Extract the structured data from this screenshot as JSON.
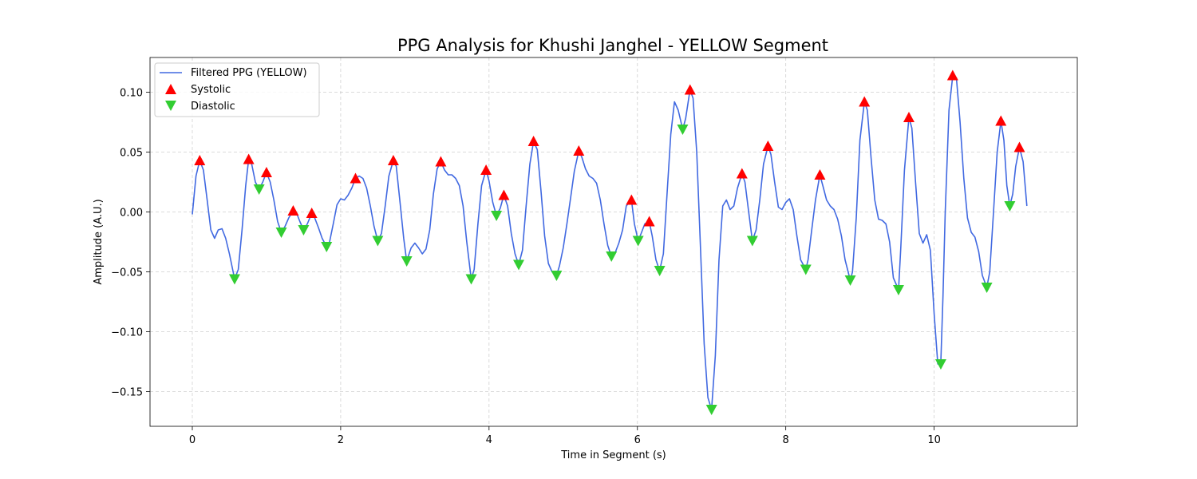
{
  "chart_data": {
    "type": "line",
    "title": "PPG Analysis for Khushi Janghel - YELLOW Segment",
    "xlabel": "Time in Segment (s)",
    "ylabel": "Amplitude (A.U.)",
    "xlim": [
      -0.57,
      11.93
    ],
    "ylim": [
      -0.179,
      0.129
    ],
    "xticks": [
      0,
      2,
      4,
      6,
      8,
      10
    ],
    "yticks": [
      -0.15,
      -0.1,
      -0.05,
      0.0,
      0.05,
      0.1
    ],
    "grid": true,
    "legend_position": "upper-left",
    "colors": {
      "line": "#4169e1",
      "systolic": "#ff0000",
      "diastolic": "#32cd32",
      "grid": "#b0b0b0"
    },
    "series": [
      {
        "name": "Filtered PPG (YELLOW)",
        "kind": "line",
        "points": [
          [
            0.0,
            -0.002
          ],
          [
            0.05,
            0.03
          ],
          [
            0.1,
            0.043
          ],
          [
            0.15,
            0.035
          ],
          [
            0.2,
            0.01
          ],
          [
            0.25,
            -0.015
          ],
          [
            0.3,
            -0.022
          ],
          [
            0.35,
            -0.015
          ],
          [
            0.4,
            -0.014
          ],
          [
            0.45,
            -0.022
          ],
          [
            0.5,
            -0.035
          ],
          [
            0.57,
            -0.056
          ],
          [
            0.62,
            -0.048
          ],
          [
            0.67,
            -0.015
          ],
          [
            0.72,
            0.022
          ],
          [
            0.76,
            0.044
          ],
          [
            0.8,
            0.04
          ],
          [
            0.85,
            0.025
          ],
          [
            0.9,
            0.019
          ],
          [
            0.95,
            0.025
          ],
          [
            1.0,
            0.033
          ],
          [
            1.05,
            0.025
          ],
          [
            1.1,
            0.01
          ],
          [
            1.15,
            -0.008
          ],
          [
            1.2,
            -0.017
          ],
          [
            1.25,
            -0.012
          ],
          [
            1.3,
            -0.005
          ],
          [
            1.36,
            0.001
          ],
          [
            1.4,
            0.0
          ],
          [
            1.45,
            -0.008
          ],
          [
            1.5,
            -0.015
          ],
          [
            1.55,
            -0.01
          ],
          [
            1.61,
            -0.001
          ],
          [
            1.65,
            -0.005
          ],
          [
            1.7,
            -0.013
          ],
          [
            1.75,
            -0.022
          ],
          [
            1.81,
            -0.029
          ],
          [
            1.85,
            -0.025
          ],
          [
            1.9,
            -0.01
          ],
          [
            1.95,
            0.006
          ],
          [
            2.0,
            0.011
          ],
          [
            2.05,
            0.01
          ],
          [
            2.1,
            0.014
          ],
          [
            2.15,
            0.02
          ],
          [
            2.2,
            0.028
          ],
          [
            2.25,
            0.03
          ],
          [
            2.3,
            0.028
          ],
          [
            2.35,
            0.02
          ],
          [
            2.4,
            0.005
          ],
          [
            2.45,
            -0.012
          ],
          [
            2.5,
            -0.024
          ],
          [
            2.55,
            -0.018
          ],
          [
            2.6,
            0.005
          ],
          [
            2.65,
            0.03
          ],
          [
            2.71,
            0.043
          ],
          [
            2.75,
            0.038
          ],
          [
            2.8,
            0.008
          ],
          [
            2.85,
            -0.022
          ],
          [
            2.89,
            -0.041
          ],
          [
            2.95,
            -0.03
          ],
          [
            3.0,
            -0.026
          ],
          [
            3.05,
            -0.03
          ],
          [
            3.1,
            -0.035
          ],
          [
            3.15,
            -0.031
          ],
          [
            3.2,
            -0.015
          ],
          [
            3.25,
            0.015
          ],
          [
            3.3,
            0.036
          ],
          [
            3.35,
            0.042
          ],
          [
            3.4,
            0.035
          ],
          [
            3.45,
            0.031
          ],
          [
            3.5,
            0.031
          ],
          [
            3.55,
            0.028
          ],
          [
            3.6,
            0.022
          ],
          [
            3.65,
            0.005
          ],
          [
            3.7,
            -0.025
          ],
          [
            3.76,
            -0.056
          ],
          [
            3.8,
            -0.048
          ],
          [
            3.85,
            -0.01
          ],
          [
            3.9,
            0.022
          ],
          [
            3.96,
            0.035
          ],
          [
            4.0,
            0.026
          ],
          [
            4.05,
            0.008
          ],
          [
            4.1,
            -0.003
          ],
          [
            4.15,
            0.003
          ],
          [
            4.2,
            0.014
          ],
          [
            4.25,
            0.005
          ],
          [
            4.3,
            -0.018
          ],
          [
            4.35,
            -0.035
          ],
          [
            4.4,
            -0.044
          ],
          [
            4.45,
            -0.032
          ],
          [
            4.5,
            0.005
          ],
          [
            4.55,
            0.04
          ],
          [
            4.6,
            0.059
          ],
          [
            4.65,
            0.052
          ],
          [
            4.7,
            0.018
          ],
          [
            4.75,
            -0.02
          ],
          [
            4.8,
            -0.043
          ],
          [
            4.85,
            -0.05
          ],
          [
            4.91,
            -0.053
          ],
          [
            4.95,
            -0.045
          ],
          [
            5.0,
            -0.03
          ],
          [
            5.05,
            -0.01
          ],
          [
            5.1,
            0.012
          ],
          [
            5.15,
            0.034
          ],
          [
            5.21,
            0.051
          ],
          [
            5.25,
            0.046
          ],
          [
            5.3,
            0.036
          ],
          [
            5.35,
            0.03
          ],
          [
            5.4,
            0.028
          ],
          [
            5.45,
            0.024
          ],
          [
            5.5,
            0.01
          ],
          [
            5.55,
            -0.01
          ],
          [
            5.6,
            -0.028
          ],
          [
            5.65,
            -0.037
          ],
          [
            5.7,
            -0.034
          ],
          [
            5.75,
            -0.026
          ],
          [
            5.8,
            -0.015
          ],
          [
            5.85,
            0.005
          ],
          [
            5.92,
            0.01
          ],
          [
            5.96,
            -0.01
          ],
          [
            6.01,
            -0.024
          ],
          [
            6.05,
            -0.018
          ],
          [
            6.1,
            -0.01
          ],
          [
            6.16,
            -0.008
          ],
          [
            6.2,
            -0.02
          ],
          [
            6.25,
            -0.04
          ],
          [
            6.3,
            -0.049
          ],
          [
            6.35,
            -0.035
          ],
          [
            6.4,
            0.015
          ],
          [
            6.45,
            0.065
          ],
          [
            6.5,
            0.092
          ],
          [
            6.55,
            0.085
          ],
          [
            6.61,
            0.069
          ],
          [
            6.65,
            0.078
          ],
          [
            6.71,
            0.102
          ],
          [
            6.75,
            0.095
          ],
          [
            6.8,
            0.05
          ],
          [
            6.85,
            -0.03
          ],
          [
            6.9,
            -0.11
          ],
          [
            6.95,
            -0.155
          ],
          [
            7.0,
            -0.165
          ],
          [
            7.05,
            -0.12
          ],
          [
            7.1,
            -0.04
          ],
          [
            7.15,
            0.005
          ],
          [
            7.2,
            0.01
          ],
          [
            7.25,
            0.002
          ],
          [
            7.3,
            0.005
          ],
          [
            7.35,
            0.02
          ],
          [
            7.41,
            0.032
          ],
          [
            7.45,
            0.025
          ],
          [
            7.5,
            0.0
          ],
          [
            7.55,
            -0.024
          ],
          [
            7.6,
            -0.015
          ],
          [
            7.65,
            0.01
          ],
          [
            7.7,
            0.04
          ],
          [
            7.76,
            0.055
          ],
          [
            7.8,
            0.048
          ],
          [
            7.85,
            0.025
          ],
          [
            7.9,
            0.004
          ],
          [
            7.95,
            0.002
          ],
          [
            8.0,
            0.008
          ],
          [
            8.05,
            0.011
          ],
          [
            8.1,
            0.002
          ],
          [
            8.15,
            -0.02
          ],
          [
            8.2,
            -0.04
          ],
          [
            8.27,
            -0.048
          ],
          [
            8.3,
            -0.04
          ],
          [
            8.35,
            -0.015
          ],
          [
            8.4,
            0.01
          ],
          [
            8.46,
            0.031
          ],
          [
            8.5,
            0.022
          ],
          [
            8.55,
            0.01
          ],
          [
            8.6,
            0.005
          ],
          [
            8.65,
            0.002
          ],
          [
            8.7,
            -0.006
          ],
          [
            8.75,
            -0.02
          ],
          [
            8.8,
            -0.04
          ],
          [
            8.87,
            -0.057
          ],
          [
            8.9,
            -0.05
          ],
          [
            8.95,
            -0.005
          ],
          [
            9.0,
            0.06
          ],
          [
            9.06,
            0.092
          ],
          [
            9.1,
            0.085
          ],
          [
            9.15,
            0.045
          ],
          [
            9.2,
            0.01
          ],
          [
            9.25,
            -0.006
          ],
          [
            9.3,
            -0.007
          ],
          [
            9.35,
            -0.01
          ],
          [
            9.4,
            -0.025
          ],
          [
            9.45,
            -0.055
          ],
          [
            9.52,
            -0.065
          ],
          [
            9.55,
            -0.03
          ],
          [
            9.6,
            0.035
          ],
          [
            9.66,
            0.079
          ],
          [
            9.7,
            0.07
          ],
          [
            9.75,
            0.025
          ],
          [
            9.8,
            -0.018
          ],
          [
            9.85,
            -0.026
          ],
          [
            9.9,
            -0.019
          ],
          [
            9.95,
            -0.032
          ],
          [
            10.0,
            -0.085
          ],
          [
            10.05,
            -0.127
          ],
          [
            10.09,
            -0.125
          ],
          [
            10.12,
            -0.07
          ],
          [
            10.15,
            0.0
          ],
          [
            10.2,
            0.085
          ],
          [
            10.25,
            0.113
          ],
          [
            10.3,
            0.112
          ],
          [
            10.35,
            0.075
          ],
          [
            10.4,
            0.028
          ],
          [
            10.45,
            -0.005
          ],
          [
            10.5,
            -0.017
          ],
          [
            10.55,
            -0.021
          ],
          [
            10.6,
            -0.033
          ],
          [
            10.65,
            -0.053
          ],
          [
            10.71,
            -0.063
          ],
          [
            10.75,
            -0.05
          ],
          [
            10.8,
            0.0
          ],
          [
            10.85,
            0.05
          ],
          [
            10.9,
            0.076
          ],
          [
            10.94,
            0.06
          ],
          [
            10.98,
            0.022
          ],
          [
            11.02,
            0.005
          ],
          [
            11.06,
            0.015
          ],
          [
            11.1,
            0.038
          ],
          [
            11.15,
            0.054
          ],
          [
            11.2,
            0.042
          ],
          [
            11.25,
            0.005
          ]
        ]
      },
      {
        "name": "Systolic",
        "kind": "marker-up",
        "points": [
          [
            0.1,
            0.043
          ],
          [
            0.76,
            0.044
          ],
          [
            1.0,
            0.033
          ],
          [
            1.36,
            0.001
          ],
          [
            1.61,
            -0.001
          ],
          [
            2.2,
            0.028
          ],
          [
            2.71,
            0.043
          ],
          [
            3.35,
            0.042
          ],
          [
            3.96,
            0.035
          ],
          [
            4.2,
            0.014
          ],
          [
            4.6,
            0.059
          ],
          [
            5.21,
            0.051
          ],
          [
            5.92,
            0.01
          ],
          [
            6.16,
            -0.008
          ],
          [
            6.71,
            0.102
          ],
          [
            7.41,
            0.032
          ],
          [
            7.76,
            0.055
          ],
          [
            8.46,
            0.031
          ],
          [
            9.06,
            0.092
          ],
          [
            9.66,
            0.079
          ],
          [
            10.25,
            0.114
          ],
          [
            10.9,
            0.076
          ],
          [
            11.15,
            0.054
          ]
        ]
      },
      {
        "name": "Diastolic",
        "kind": "marker-down",
        "points": [
          [
            0.57,
            -0.056
          ],
          [
            0.9,
            0.019
          ],
          [
            1.2,
            -0.017
          ],
          [
            1.5,
            -0.015
          ],
          [
            1.81,
            -0.029
          ],
          [
            2.5,
            -0.024
          ],
          [
            2.89,
            -0.041
          ],
          [
            3.76,
            -0.056
          ],
          [
            4.1,
            -0.003
          ],
          [
            4.4,
            -0.044
          ],
          [
            4.91,
            -0.053
          ],
          [
            5.65,
            -0.037
          ],
          [
            6.01,
            -0.024
          ],
          [
            6.3,
            -0.049
          ],
          [
            6.61,
            0.069
          ],
          [
            7.0,
            -0.165
          ],
          [
            7.55,
            -0.024
          ],
          [
            8.27,
            -0.048
          ],
          [
            8.87,
            -0.057
          ],
          [
            9.52,
            -0.065
          ],
          [
            10.09,
            -0.127
          ],
          [
            10.71,
            -0.063
          ],
          [
            11.02,
            0.005
          ]
        ]
      }
    ]
  }
}
